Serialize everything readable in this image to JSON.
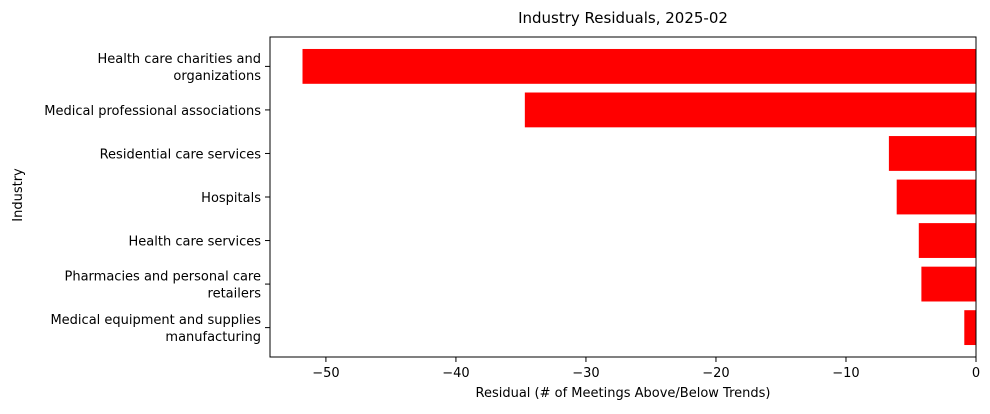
{
  "chart_data": {
    "type": "bar",
    "orientation": "horizontal",
    "title": "Industry Residuals, 2025-02",
    "xlabel": "Residual (# of Meetings Above/Below Trends)",
    "ylabel": "Industry",
    "categories": [
      "Health care charities and\norganizations",
      "Medical professional associations",
      "Residential care services",
      "Hospitals",
      "Health care services",
      "Pharmacies and personal care\nretailers",
      "Medical equipment and supplies\nmanufacturing"
    ],
    "values": [
      -51.8,
      -34.7,
      -6.7,
      -6.1,
      -4.4,
      -4.2,
      -0.9
    ],
    "xlim": [
      -54.3,
      0
    ],
    "xticks": [
      -50,
      -40,
      -30,
      -20,
      -10,
      0
    ],
    "xtick_labels": [
      "−50",
      "−40",
      "−30",
      "−20",
      "−10",
      "0"
    ],
    "bar_color": "#ff0000",
    "grid": false,
    "legend": "none"
  }
}
